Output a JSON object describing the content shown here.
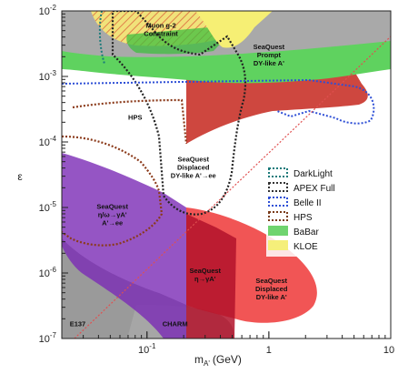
{
  "chart_data": {
    "type": "area",
    "xlabel": "m",
    "xlabel_sub": "A'",
    "xlabel_unit": "(GeV)",
    "ylabel": "ε",
    "xscale": "log",
    "yscale": "log",
    "xlim": [
      0.02,
      10
    ],
    "ylim": [
      1e-07,
      0.01
    ],
    "xticks": [
      {
        "value": 0.1,
        "base": "10",
        "exp": "-1"
      },
      {
        "value": 1,
        "label": "1"
      },
      {
        "value": 10,
        "label": "10"
      }
    ],
    "yticks": [
      {
        "value": 1e-07,
        "base": "10",
        "exp": "-7"
      },
      {
        "value": 1e-06,
        "base": "10",
        "exp": "-6"
      },
      {
        "value": 1e-05,
        "base": "10",
        "exp": "-5"
      },
      {
        "value": 0.0001,
        "base": "10",
        "exp": "-4"
      },
      {
        "value": 0.001,
        "base": "10",
        "exp": "-3"
      },
      {
        "value": 0.01,
        "base": "10",
        "exp": "-2"
      }
    ],
    "legend_position": "right",
    "legend": [
      {
        "label": "DarkLight",
        "style": "dotted-box",
        "color": "#1a7a7a"
      },
      {
        "label": "APEX Full",
        "style": "dotted-box",
        "color": "#333333"
      },
      {
        "label": "Belle II",
        "style": "dotted-box",
        "color": "#2e4fd6"
      },
      {
        "label": "HPS",
        "style": "dotted-box",
        "color": "#7a3b1a"
      },
      {
        "label": "BaBar",
        "style": "fill",
        "color": "#6fd46f"
      },
      {
        "label": "KLOE",
        "style": "fill",
        "color": "#f5ef7a"
      }
    ],
    "annotations": [
      {
        "id": "muon",
        "lines": [
          "Muon g-2",
          "Constraint"
        ],
        "mass": 0.13,
        "eps": 0.0055
      },
      {
        "id": "prompt",
        "lines": [
          "SeaQuest",
          "Prompt",
          "DY-like A'"
        ],
        "mass": 1.0,
        "eps": 0.0026
      },
      {
        "id": "hps",
        "lines": [
          "HPS"
        ],
        "mass": 0.08,
        "eps": 0.00022,
        "color": "#c07a2a"
      },
      {
        "id": "displaced",
        "lines": [
          "SeaQuest",
          "Displaced",
          "DY-like A'→ee"
        ],
        "mass": 0.24,
        "eps": 5e-05
      },
      {
        "id": "eta",
        "lines": [
          "SeaQuest",
          "η/ω→γA'",
          "A'→ee"
        ],
        "mass": 0.052,
        "eps": 9.5e-06
      },
      {
        "id": "eta-small",
        "lines": [
          "SeaQuest",
          "η→γA'"
        ],
        "mass": 0.3,
        "eps": 1e-06
      },
      {
        "id": "displaced-low",
        "lines": [
          "SeaQuest",
          "Displaced",
          "DY-like A'"
        ],
        "mass": 1.05,
        "eps": 7e-07
      },
      {
        "id": "charm",
        "lines": [
          "CHARM"
        ],
        "mass": 0.17,
        "eps": 1.55e-07,
        "color": "#ffffff"
      },
      {
        "id": "e137",
        "lines": [
          "E137"
        ],
        "mass": 0.027,
        "eps": 1.55e-07
      }
    ]
  }
}
